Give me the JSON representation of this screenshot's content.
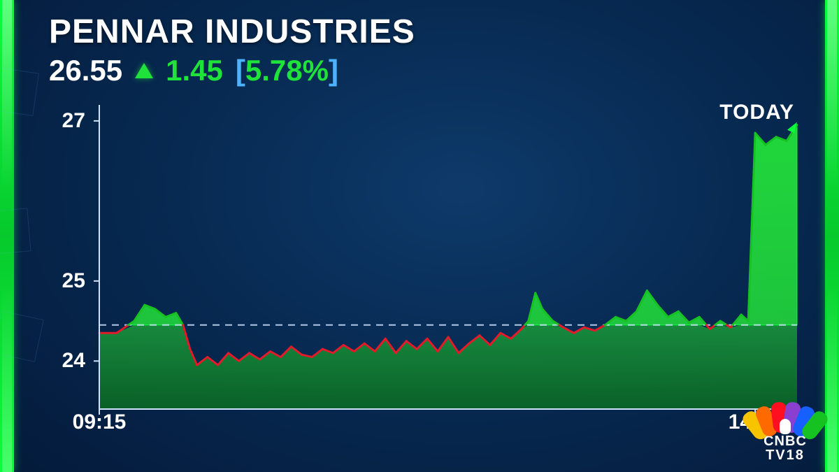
{
  "header": {
    "title": "PENNAR INDUSTRIES",
    "price": "26.55",
    "change": "1.45",
    "pct_open": "[",
    "pct_value": "5.78%",
    "pct_close": "]"
  },
  "chart": {
    "type": "line-area",
    "period_label": "TODAY",
    "ylim": [
      23.4,
      27.2
    ],
    "baseline": 24.45,
    "y_ticks": [
      24,
      25,
      27
    ],
    "x_ticks": [
      {
        "pos": 0.0,
        "label": "09:15"
      },
      {
        "pos": 0.94,
        "label": "14:00"
      }
    ],
    "colors": {
      "axis": "#cfe3ff",
      "baseline_dash": "#cfe3ff",
      "area_base": "#0a6b22",
      "area_base_top": "#1a9a3a",
      "area_above": "#22e03a",
      "area_above_stroke": "#0aff3a",
      "line_below": "#e11b2a",
      "line_above": "#16c222",
      "spike_fill": "#22e03a",
      "arrow": "#0aff3a"
    },
    "series": [
      {
        "x": 0.0,
        "y": 24.35
      },
      {
        "x": 0.025,
        "y": 24.35
      },
      {
        "x": 0.05,
        "y": 24.5
      },
      {
        "x": 0.065,
        "y": 24.7
      },
      {
        "x": 0.08,
        "y": 24.65
      },
      {
        "x": 0.095,
        "y": 24.55
      },
      {
        "x": 0.11,
        "y": 24.6
      },
      {
        "x": 0.12,
        "y": 24.45
      },
      {
        "x": 0.13,
        "y": 24.15
      },
      {
        "x": 0.14,
        "y": 23.95
      },
      {
        "x": 0.155,
        "y": 24.05
      },
      {
        "x": 0.17,
        "y": 23.95
      },
      {
        "x": 0.185,
        "y": 24.1
      },
      {
        "x": 0.2,
        "y": 24.0
      },
      {
        "x": 0.215,
        "y": 24.1
      },
      {
        "x": 0.23,
        "y": 24.02
      },
      {
        "x": 0.245,
        "y": 24.12
      },
      {
        "x": 0.26,
        "y": 24.05
      },
      {
        "x": 0.275,
        "y": 24.18
      },
      {
        "x": 0.29,
        "y": 24.08
      },
      {
        "x": 0.305,
        "y": 24.05
      },
      {
        "x": 0.32,
        "y": 24.15
      },
      {
        "x": 0.335,
        "y": 24.1
      },
      {
        "x": 0.35,
        "y": 24.2
      },
      {
        "x": 0.365,
        "y": 24.12
      },
      {
        "x": 0.38,
        "y": 24.22
      },
      {
        "x": 0.395,
        "y": 24.12
      },
      {
        "x": 0.41,
        "y": 24.28
      },
      {
        "x": 0.425,
        "y": 24.1
      },
      {
        "x": 0.44,
        "y": 24.25
      },
      {
        "x": 0.455,
        "y": 24.15
      },
      {
        "x": 0.47,
        "y": 24.28
      },
      {
        "x": 0.485,
        "y": 24.12
      },
      {
        "x": 0.5,
        "y": 24.3
      },
      {
        "x": 0.515,
        "y": 24.1
      },
      {
        "x": 0.53,
        "y": 24.22
      },
      {
        "x": 0.545,
        "y": 24.32
      },
      {
        "x": 0.56,
        "y": 24.2
      },
      {
        "x": 0.575,
        "y": 24.35
      },
      {
        "x": 0.59,
        "y": 24.28
      },
      {
        "x": 0.605,
        "y": 24.4
      },
      {
        "x": 0.615,
        "y": 24.5
      },
      {
        "x": 0.625,
        "y": 24.85
      },
      {
        "x": 0.635,
        "y": 24.65
      },
      {
        "x": 0.65,
        "y": 24.5
      },
      {
        "x": 0.665,
        "y": 24.42
      },
      {
        "x": 0.68,
        "y": 24.35
      },
      {
        "x": 0.695,
        "y": 24.42
      },
      {
        "x": 0.71,
        "y": 24.38
      },
      {
        "x": 0.725,
        "y": 24.45
      },
      {
        "x": 0.74,
        "y": 24.55
      },
      {
        "x": 0.755,
        "y": 24.5
      },
      {
        "x": 0.77,
        "y": 24.62
      },
      {
        "x": 0.785,
        "y": 24.88
      },
      {
        "x": 0.8,
        "y": 24.7
      },
      {
        "x": 0.815,
        "y": 24.55
      },
      {
        "x": 0.83,
        "y": 24.62
      },
      {
        "x": 0.845,
        "y": 24.48
      },
      {
        "x": 0.86,
        "y": 24.55
      },
      {
        "x": 0.875,
        "y": 24.4
      },
      {
        "x": 0.89,
        "y": 24.5
      },
      {
        "x": 0.905,
        "y": 24.42
      },
      {
        "x": 0.92,
        "y": 24.58
      },
      {
        "x": 0.93,
        "y": 24.5
      },
      {
        "x": 0.94,
        "y": 26.85
      },
      {
        "x": 0.955,
        "y": 26.7
      },
      {
        "x": 0.97,
        "y": 26.8
      },
      {
        "x": 0.985,
        "y": 26.75
      },
      {
        "x": 1.0,
        "y": 26.95
      }
    ],
    "fontsize_axis": 30,
    "fontsize_period": 30
  },
  "logo": {
    "line1": "CNBC",
    "line2": "TV18"
  }
}
